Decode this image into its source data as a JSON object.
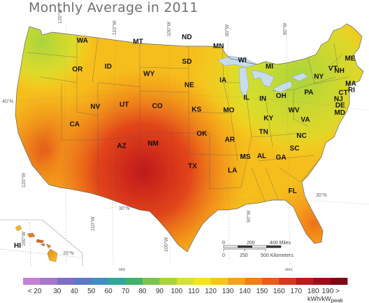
{
  "title": "Monthly Average in 2011",
  "state_labels": [
    {
      "abbr": "WA",
      "lon": -120.6,
      "lat": 47.5
    },
    {
      "abbr": "OR",
      "lon": -121.0,
      "lat": 44.0
    },
    {
      "abbr": "ID",
      "lon": -115.2,
      "lat": 44.1
    },
    {
      "abbr": "MT",
      "lon": -109.8,
      "lat": 47.0
    },
    {
      "abbr": "WY",
      "lon": -107.4,
      "lat": 43.0
    },
    {
      "abbr": "NV",
      "lon": -117.0,
      "lat": 39.2
    },
    {
      "abbr": "UT",
      "lon": -111.7,
      "lat": 39.3
    },
    {
      "abbr": "CO",
      "lon": -105.6,
      "lat": 39.0
    },
    {
      "abbr": "CA",
      "lon": -120.5,
      "lat": 37.2
    },
    {
      "abbr": "AZ",
      "lon": -111.7,
      "lat": 34.2
    },
    {
      "abbr": "NM",
      "lon": -106.1,
      "lat": 34.4
    },
    {
      "abbr": "ND",
      "lon": -100.4,
      "lat": 47.4
    },
    {
      "abbr": "SD",
      "lon": -100.3,
      "lat": 44.4
    },
    {
      "abbr": "NE",
      "lon": -99.8,
      "lat": 41.5
    },
    {
      "abbr": "KS",
      "lon": -98.4,
      "lat": 38.5
    },
    {
      "abbr": "OK",
      "lon": -97.4,
      "lat": 35.5
    },
    {
      "abbr": "TX",
      "lon": -99.0,
      "lat": 31.5
    },
    {
      "abbr": "MN",
      "lon": -94.3,
      "lat": 46.3
    },
    {
      "abbr": "IA",
      "lon": -93.5,
      "lat": 42.1
    },
    {
      "abbr": "MO",
      "lon": -92.5,
      "lat": 38.4
    },
    {
      "abbr": "AR",
      "lon": -92.4,
      "lat": 34.8
    },
    {
      "abbr": "LA",
      "lon": -92.0,
      "lat": 31.0
    },
    {
      "abbr": "WI",
      "lon": -89.8,
      "lat": 44.6
    },
    {
      "abbr": "IL",
      "lon": -89.2,
      "lat": 40.0
    },
    {
      "abbr": "MI",
      "lon": -84.7,
      "lat": 43.9
    },
    {
      "abbr": "IN",
      "lon": -86.2,
      "lat": 39.9
    },
    {
      "abbr": "OH",
      "lon": -82.8,
      "lat": 40.3
    },
    {
      "abbr": "KY",
      "lon": -85.3,
      "lat": 37.5
    },
    {
      "abbr": "TN",
      "lon": -86.3,
      "lat": 35.8
    },
    {
      "abbr": "MS",
      "lon": -89.7,
      "lat": 32.7
    },
    {
      "abbr": "AL",
      "lon": -86.8,
      "lat": 32.8
    },
    {
      "abbr": "GA",
      "lon": -83.4,
      "lat": 32.7
    },
    {
      "abbr": "FL",
      "lon": -81.7,
      "lat": 28.6
    },
    {
      "abbr": "SC",
      "lon": -80.9,
      "lat": 33.9
    },
    {
      "abbr": "NC",
      "lon": -79.5,
      "lat": 35.5
    },
    {
      "abbr": "VA",
      "lon": -78.6,
      "lat": 37.5
    },
    {
      "abbr": "WV",
      "lon": -80.6,
      "lat": 38.6
    },
    {
      "abbr": "PA",
      "lon": -77.6,
      "lat": 40.9
    },
    {
      "abbr": "NY",
      "lon": -75.5,
      "lat": 42.9
    },
    {
      "abbr": "VT",
      "lon": -72.7,
      "lat": 44.0
    },
    {
      "abbr": "NH",
      "lon": -71.5,
      "lat": 43.8
    },
    {
      "abbr": "ME",
      "lon": -69.2,
      "lat": 45.4
    },
    {
      "abbr": "MA",
      "lon": -69.6,
      "lat": 42.3
    },
    {
      "abbr": "RI",
      "lon": -69.6,
      "lat": 41.5
    },
    {
      "abbr": "CT",
      "lon": -71.2,
      "lat": 41.1
    },
    {
      "abbr": "NJ",
      "lon": -72.2,
      "lat": 40.3
    },
    {
      "abbr": "DE",
      "lon": -72.0,
      "lat": 39.5
    },
    {
      "abbr": "MD",
      "lon": -72.2,
      "lat": 38.6
    }
  ],
  "hawaii_label": "HI",
  "graticule_labels": {
    "lon_top": [
      "120°W",
      "110°W",
      "100°W",
      "90°W",
      "80°W"
    ],
    "lat_left": [
      "40°N"
    ],
    "lat_right": [
      "30°N"
    ],
    "lon_bottom": [
      "120°W",
      "110°W",
      "100°W",
      "90°W"
    ],
    "lat_gulf": "30°N",
    "hawaii": [
      "160°W",
      "20°N"
    ]
  },
  "scale_bar": {
    "miles": [
      "0",
      "200",
      "400 Miles"
    ],
    "km": [
      "0",
      "250",
      "500 Kilometers"
    ]
  },
  "legend": {
    "min_label": "MIN",
    "max_label": "MAX",
    "ticks": [
      "< 20",
      "30",
      "40",
      "50",
      "60",
      "70",
      "80",
      "90",
      "100",
      "110",
      "120",
      "130",
      "140",
      "150",
      "160",
      "170",
      "180",
      "190 >"
    ],
    "units_main": "kWh/kW",
    "units_sub": "peak",
    "colors": [
      "#c47fd6",
      "#a677cd",
      "#7d6fc6",
      "#5a79c8",
      "#3f8fc2",
      "#2ea79d",
      "#3fb36c",
      "#79c450",
      "#a8d43d",
      "#d5e22f",
      "#f3e41e",
      "#f8c51a",
      "#f6a219",
      "#f27e19",
      "#ea5a1a",
      "#da351b",
      "#c0181b",
      "#9e0c18",
      "#7d0713"
    ]
  }
}
